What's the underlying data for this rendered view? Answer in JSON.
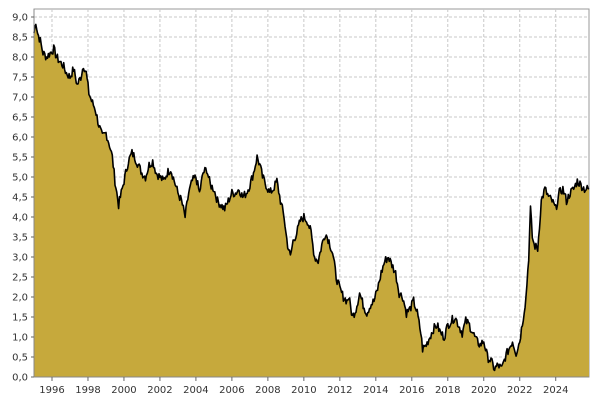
{
  "chart_data": {
    "type": "area",
    "title": "",
    "xlabel": "",
    "ylabel": "",
    "xlim": [
      1995.0,
      2025.85
    ],
    "ylim": [
      0,
      9.2
    ],
    "grid": true,
    "legend": "none",
    "y_ticks": [
      "0,0",
      "0,5",
      "1,0",
      "1,5",
      "2,0",
      "2,5",
      "3,0",
      "3,5",
      "4,0",
      "4,5",
      "5,0",
      "5,5",
      "6,0",
      "6,5",
      "7,0",
      "7,5",
      "8,0",
      "8,5",
      "9,0"
    ],
    "y_tick_values": [
      0,
      0.5,
      1,
      1.5,
      2,
      2.5,
      3,
      3.5,
      4,
      4.5,
      5,
      5.5,
      6,
      6.5,
      7,
      7.5,
      8,
      8.5,
      9
    ],
    "x_ticks": [
      "1996",
      "1998",
      "2000",
      "2002",
      "2004",
      "2006",
      "2008",
      "2010",
      "2012",
      "2014",
      "2016",
      "2018",
      "2020",
      "2022",
      "2024"
    ],
    "x_tick_values": [
      1996,
      1998,
      2000,
      2002,
      2004,
      2006,
      2008,
      2010,
      2012,
      2014,
      2016,
      2018,
      2020,
      2022,
      2024
    ],
    "colors": {
      "fill": "#c6a93c",
      "line": "#000000"
    },
    "series": [
      {
        "x": [
          1995.0,
          1995.1,
          1995.2,
          1995.35,
          1995.5,
          1995.7,
          1995.9,
          1996.1,
          1996.25,
          1996.4,
          1996.6,
          1996.8,
          1997.0,
          1997.2,
          1997.4,
          1997.6,
          1997.75,
          1997.9,
          1998.05,
          1998.2,
          1998.4,
          1998.6,
          1998.8,
          1999.0,
          1999.2,
          1999.35,
          1999.5,
          1999.7,
          1999.85,
          2000.0,
          2000.1,
          2000.25,
          2000.45,
          2000.6,
          2000.8,
          2001.0,
          2001.2,
          2001.4,
          2001.6,
          2001.8,
          2002.0,
          2002.2,
          2002.4,
          2002.6,
          2002.8,
          2003.0,
          2003.2,
          2003.4,
          2003.6,
          2003.8,
          2004.0,
          2004.2,
          2004.4,
          2004.6,
          2004.8,
          2005.0,
          2005.2,
          2005.4,
          2005.6,
          2005.8,
          2006.0,
          2006.2,
          2006.4,
          2006.6,
          2006.8,
          2007.0,
          2007.2,
          2007.4,
          2007.55,
          2007.7,
          2007.9,
          2008.1,
          2008.3,
          2008.5,
          2008.7,
          2008.9,
          2009.0,
          2009.1,
          2009.25,
          2009.4,
          2009.6,
          2009.8,
          2010.0,
          2010.2,
          2010.4,
          2010.6,
          2010.8,
          2011.0,
          2011.2,
          2011.4,
          2011.6,
          2011.8,
          2012.0,
          2012.2,
          2012.4,
          2012.5,
          2012.7,
          2012.9,
          2013.1,
          2013.3,
          2013.5,
          2013.7,
          2013.9,
          2014.1,
          2014.3,
          2014.5,
          2014.7,
          2014.9,
          2015.1,
          2015.3,
          2015.5,
          2015.7,
          2015.9,
          2016.1,
          2016.3,
          2016.5,
          2016.6,
          2016.8,
          2017.0,
          2017.2,
          2017.4,
          2017.6,
          2017.8,
          2018.0,
          2018.2,
          2018.4,
          2018.6,
          2018.8,
          2019.0,
          2019.2,
          2019.4,
          2019.6,
          2019.8,
          2020.0,
          2020.2,
          2020.4,
          2020.6,
          2020.8,
          2021.0,
          2021.2,
          2021.4,
          2021.6,
          2021.8,
          2022.0,
          2022.2,
          2022.35,
          2022.5,
          2022.6,
          2022.7,
          2022.8,
          2023.0,
          2023.2,
          2023.4,
          2023.6,
          2023.8,
          2024.0,
          2024.2,
          2024.4,
          2024.6,
          2024.8,
          2025.0,
          2025.2,
          2025.4,
          2025.6,
          2025.85
        ],
        "y": [
          8.6,
          8.9,
          8.6,
          8.4,
          8.1,
          8.0,
          8.1,
          8.2,
          8.0,
          7.9,
          7.8,
          7.6,
          7.5,
          7.7,
          7.3,
          7.5,
          7.8,
          7.6,
          7.1,
          6.9,
          6.7,
          6.3,
          6.0,
          6.1,
          5.8,
          5.5,
          4.9,
          4.3,
          4.6,
          4.9,
          5.1,
          5.4,
          5.6,
          5.5,
          5.3,
          5.1,
          5.0,
          5.3,
          5.4,
          5.1,
          5.0,
          4.9,
          5.1,
          5.2,
          4.9,
          4.6,
          4.4,
          4.0,
          4.6,
          4.9,
          5.0,
          4.6,
          5.1,
          5.2,
          4.8,
          4.7,
          4.4,
          4.3,
          4.2,
          4.4,
          4.6,
          4.6,
          4.7,
          4.5,
          4.6,
          4.8,
          5.1,
          5.5,
          5.3,
          5.0,
          4.8,
          4.6,
          4.7,
          4.9,
          4.4,
          4.0,
          3.6,
          3.3,
          3.0,
          3.4,
          3.6,
          3.9,
          4.0,
          3.9,
          3.6,
          3.0,
          2.9,
          3.3,
          3.6,
          3.4,
          3.1,
          2.5,
          2.2,
          2.0,
          1.9,
          2.0,
          1.5,
          1.7,
          2.1,
          1.8,
          1.6,
          1.8,
          1.9,
          2.2,
          2.6,
          2.9,
          3.0,
          2.8,
          2.6,
          2.1,
          2.0,
          1.6,
          1.7,
          1.9,
          1.6,
          1.1,
          0.7,
          0.8,
          1.0,
          1.2,
          1.3,
          1.1,
          1.0,
          1.3,
          1.4,
          1.5,
          1.3,
          1.1,
          1.4,
          1.3,
          1.1,
          0.9,
          0.8,
          0.9,
          0.5,
          0.4,
          0.2,
          0.3,
          0.2,
          0.5,
          0.7,
          0.9,
          0.6,
          0.9,
          1.5,
          2.0,
          3.0,
          4.2,
          3.5,
          3.3,
          3.2,
          4.4,
          4.7,
          4.5,
          4.4,
          4.2,
          4.6,
          4.7,
          4.4,
          4.6,
          4.7,
          4.9,
          4.8,
          4.7,
          4.7
        ]
      }
    ]
  }
}
